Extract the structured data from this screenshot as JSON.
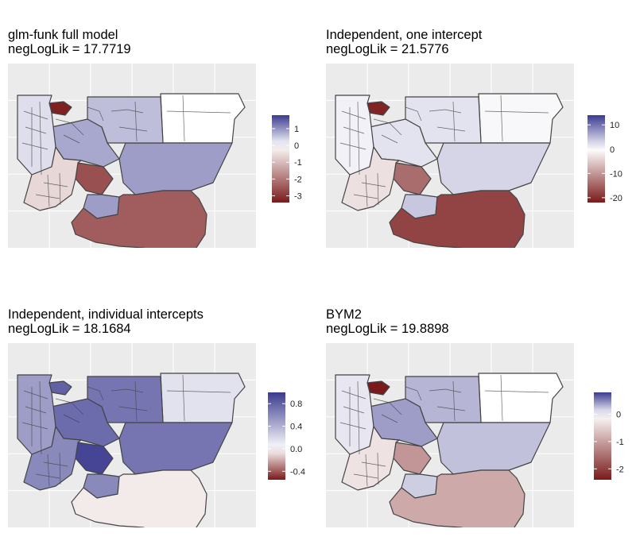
{
  "colors": {
    "panel_bg": "#ebebeb",
    "grid": "#ffffff",
    "border": "#444444",
    "neg_strong": "#7a1a1a",
    "mid": "#ffffff",
    "pos_strong": "#3b3a8f"
  },
  "panels": [
    {
      "title": "glm-funk full model",
      "subtitle": "negLogLik = 17.7719",
      "legend": {
        "ticks": [
          "1",
          "0",
          "-1",
          "-2",
          "-3"
        ],
        "range": [
          -3.4,
          1.8
        ],
        "values": [
          1,
          0,
          -1,
          -2,
          -3
        ]
      },
      "regions": {
        "big_south": -2.4,
        "east_big": 0.9,
        "east_top": 0.0,
        "center_ring": -2.6,
        "north_ring": 0.8,
        "top_dark": -3.3,
        "ne_mid": 0.6,
        "west_small": 0.3,
        "mid_west": -0.6,
        "sw_block": 0.9
      }
    },
    {
      "title": "Independent, one intercept",
      "subtitle": "negLogLik = 21.5776",
      "legend": {
        "ticks": [
          "10",
          "0",
          "-10",
          "-20"
        ],
        "range": [
          -22,
          14
        ],
        "values": [
          10,
          0,
          -10,
          -20
        ]
      },
      "regions": {
        "big_south": -18,
        "east_big": 3,
        "east_top": 0.5,
        "center_ring": -14,
        "north_ring": 2,
        "top_dark": -21,
        "ne_mid": 2,
        "west_small": 1,
        "mid_west": -3,
        "sw_block": 4
      }
    },
    {
      "title": "Independent, individual intercepts",
      "subtitle": "negLogLik = 18.1684",
      "legend": {
        "ticks": [
          "0.8",
          "0.4",
          "0.0",
          "-0.4"
        ],
        "range": [
          -0.55,
          1.0
        ],
        "values": [
          0.8,
          0.4,
          0.0,
          -0.4
        ]
      },
      "regions": {
        "big_south": -0.05,
        "east_big": 0.7,
        "east_top": 0.15,
        "center_ring": 0.95,
        "north_ring": 0.75,
        "top_dark": 0.8,
        "ne_mid": 0.7,
        "west_small": 0.5,
        "mid_west": 0.6,
        "sw_block": 0.6
      }
    },
    {
      "title": "BYM2",
      "subtitle": "negLogLik = 19.8898",
      "legend": {
        "ticks": [
          "0",
          "-1",
          "-2"
        ],
        "range": [
          -2.4,
          0.8
        ],
        "values": [
          0,
          -1,
          -2
        ]
      },
      "regions": {
        "big_south": -0.9,
        "east_big": 0.25,
        "east_top": 0.0,
        "center_ring": -1.1,
        "north_ring": 0.4,
        "top_dark": -2.4,
        "ne_mid": 0.3,
        "west_small": 0.1,
        "mid_west": -0.3,
        "sw_block": 0.2
      }
    }
  ]
}
